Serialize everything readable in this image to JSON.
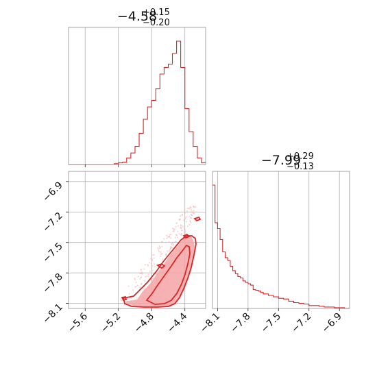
{
  "chart_data": [
    {
      "type": "histogram",
      "panel": "param1-marginal",
      "title": {
        "value": "−4.58",
        "upper": "+0.15",
        "lower": "−0.20"
      },
      "bin_edges": [
        -5.8,
        -5.75,
        -5.7,
        -5.65,
        -5.6,
        -5.55,
        -5.5,
        -5.45,
        -5.4,
        -5.35,
        -5.3,
        -5.25,
        -5.2,
        -5.15,
        -5.1,
        -5.05,
        -5.0,
        -4.95,
        -4.9,
        -4.85,
        -4.8,
        -4.75,
        -4.7,
        -4.65,
        -4.6,
        -4.55,
        -4.5,
        -4.45,
        -4.4,
        -4.35,
        -4.3,
        -4.25,
        -4.2,
        -4.15
      ],
      "counts": [
        0,
        0,
        0,
        0,
        0,
        0,
        0,
        0,
        0,
        0,
        0,
        1,
        2,
        3,
        8,
        14,
        22,
        38,
        55,
        70,
        78,
        92,
        110,
        118,
        122,
        135,
        150,
        118,
        68,
        40,
        22,
        8,
        2
      ],
      "xlim": [
        -5.8,
        -4.15
      ],
      "grid": true
    },
    {
      "type": "histogram",
      "panel": "param2-marginal",
      "title": {
        "value": "−7.99",
        "upper": "+0.29",
        "lower": "−0.13"
      },
      "bin_edges": [
        -8.15,
        -8.125,
        -8.1,
        -8.075,
        -8.05,
        -8.025,
        -8.0,
        -7.975,
        -7.95,
        -7.925,
        -7.9,
        -7.875,
        -7.85,
        -7.825,
        -7.8,
        -7.775,
        -7.75,
        -7.725,
        -7.7,
        -7.675,
        -7.65,
        -7.6,
        -7.55,
        -7.5,
        -7.45,
        -7.4,
        -7.35,
        -7.3,
        -7.25,
        -7.2,
        -7.15,
        -7.1,
        -7.05,
        -7.0,
        -6.95,
        -6.9,
        -6.85,
        -6.8
      ],
      "counts": [
        170,
        118,
        110,
        95,
        78,
        70,
        66,
        58,
        52,
        48,
        44,
        42,
        38,
        36,
        34,
        32,
        26,
        25,
        24,
        22,
        20,
        18,
        16,
        14,
        13,
        10,
        8,
        7,
        6,
        4,
        4,
        3,
        2,
        2,
        1,
        1,
        0
      ],
      "xlim": [
        -8.15,
        -6.8
      ],
      "grid": true
    },
    {
      "type": "scatter",
      "panel": "joint",
      "contour_levels": [
        "outer",
        "inner"
      ],
      "xlim": [
        -5.8,
        -4.15
      ],
      "ylim": [
        -8.15,
        -6.8
      ],
      "grid": true
    }
  ],
  "axes": {
    "x1_ticks": [
      "−5.6",
      "−5.2",
      "−4.8",
      "−4.4"
    ],
    "x1_values": [
      -5.6,
      -5.2,
      -4.8,
      -4.4
    ],
    "y2_ticks": [
      "−8.1",
      "−7.8",
      "−7.5",
      "−7.2",
      "−6.9"
    ],
    "y2_values": [
      -8.1,
      -7.8,
      -7.5,
      -7.2,
      -6.9
    ],
    "x2_ticks": [
      "−8.1",
      "−7.8",
      "−7.5",
      "−7.2",
      "−6.9"
    ],
    "x2_values": [
      -8.1,
      -7.8,
      -7.5,
      -7.2,
      -6.9
    ]
  },
  "colors": {
    "accent": "#d62728",
    "fill": "#f4a3a5",
    "grid": "#b0b0b0"
  }
}
